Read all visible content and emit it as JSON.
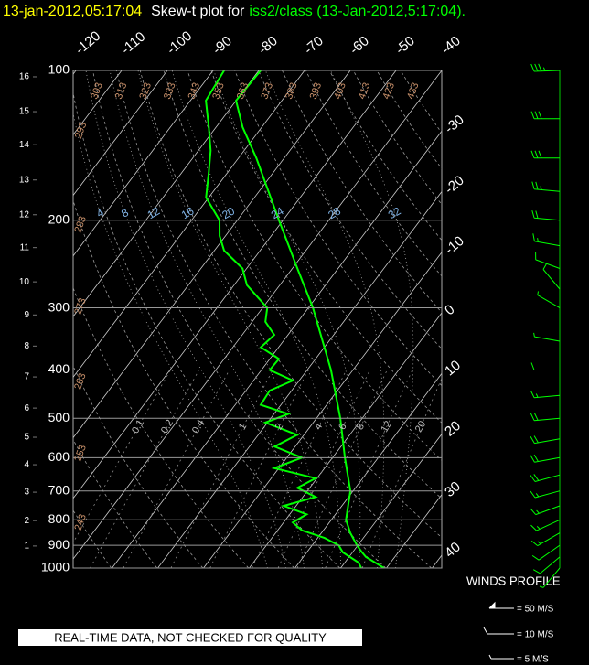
{
  "title": {
    "date": "13-jan-2012,05:17:04",
    "text": "Skew-t plot for",
    "source": "iss2/class (13-Jan-2012,5:17:04)."
  },
  "chart_data": {
    "type": "skewt",
    "log_y": true,
    "ylim": [
      1000,
      100
    ],
    "yticks": [
      100,
      200,
      300,
      400,
      500,
      600,
      700,
      800,
      900,
      1000
    ],
    "xlim": [
      -38.5,
      42.1
    ],
    "xticks": [
      -120,
      -110,
      -100,
      -90,
      -80,
      -70,
      -60,
      -50,
      -40,
      -30,
      -20,
      -10,
      0,
      10,
      20,
      30,
      40
    ],
    "height_km_ticks": [
      {
        "km": 1,
        "pressure": 903
      },
      {
        "km": 2,
        "pressure": 803
      },
      {
        "km": 3,
        "pressure": 704
      },
      {
        "km": 4,
        "pressure": 620
      },
      {
        "km": 5,
        "pressure": 546
      },
      {
        "km": 6,
        "pressure": 477
      },
      {
        "km": 7,
        "pressure": 413
      },
      {
        "km": 8,
        "pressure": 358
      },
      {
        "km": 9,
        "pressure": 310
      },
      {
        "km": 10,
        "pressure": 266
      },
      {
        "km": 11,
        "pressure": 227
      },
      {
        "km": 12,
        "pressure": 195
      },
      {
        "km": 13,
        "pressure": 166
      },
      {
        "km": 14,
        "pressure": 141
      },
      {
        "km": 15,
        "pressure": 121
      },
      {
        "km": 16,
        "pressure": 103
      }
    ],
    "dry_adiabats": [
      243,
      253,
      263,
      273,
      283,
      293,
      303,
      313,
      323,
      333,
      343,
      353,
      363,
      373,
      383,
      393,
      403,
      413,
      423,
      433
    ],
    "mixing_ratios": [
      0.1,
      0.2,
      0.4,
      1,
      2,
      4,
      6,
      8,
      12,
      20
    ],
    "moist_adiabats": [
      4,
      8,
      12,
      16,
      20,
      24,
      28,
      32
    ],
    "series": [
      {
        "color": "#00ff00",
        "pressure": [
          1000,
          950,
          925,
          900,
          850,
          800,
          700,
          600,
          500,
          400,
          300,
          250,
          200,
          150,
          130,
          115,
          100
        ],
        "values": [
          29.5,
          23.7,
          21.7,
          19.8,
          16.3,
          13.2,
          9.4,
          2.7,
          -4.8,
          -14.8,
          -29,
          -38.9,
          -50.9,
          -66.1,
          -74.2,
          -80,
          -79.6
        ]
      },
      {
        "color": "#00ff00",
        "pressure": [
          1000,
          975,
          930,
          900,
          870,
          840,
          810,
          780,
          750,
          720,
          690,
          660,
          630,
          600,
          570,
          540,
          510,
          490,
          470,
          440,
          420,
          400,
          380,
          360,
          340,
          320,
          300,
          270,
          250,
          230,
          215,
          200,
          180,
          160,
          145,
          130,
          115,
          100
        ],
        "values": [
          24.5,
          23,
          17.9,
          15.8,
          11.5,
          5.3,
          2,
          3.7,
          -2.7,
          2.8,
          -2.7,
          -0.3,
          -11,
          -6.7,
          -14.5,
          -11.5,
          -20.5,
          -16.9,
          -24.4,
          -24.8,
          -21.4,
          -28.2,
          -28,
          -33.9,
          -33,
          -37.1,
          -39,
          -47.2,
          -50.9,
          -57.9,
          -61.3,
          -63.9,
          -70.6,
          -74.2,
          -77.3,
          -81.6,
          -86.6,
          -87.6
        ]
      }
    ],
    "winds": {
      "pressure": [
        1000,
        950,
        900,
        850,
        800,
        750,
        700,
        650,
        600,
        550,
        500,
        450,
        400,
        350,
        300,
        275,
        250,
        225,
        200,
        175,
        150,
        125,
        100
      ],
      "speed": [
        8,
        12,
        14,
        15,
        16,
        17,
        18,
        20,
        22,
        22,
        20,
        16,
        12,
        8,
        6,
        10,
        14,
        18,
        22,
        26,
        30,
        32,
        35
      ],
      "direction": [
        220,
        230,
        235,
        240,
        245,
        250,
        255,
        255,
        260,
        260,
        265,
        265,
        270,
        280,
        300,
        320,
        290,
        280,
        275,
        275,
        270,
        270,
        268
      ]
    },
    "legend": {
      "title": "WINDS PROFILE",
      "items": [
        "= 50 M/S",
        "= 10 M/S",
        "= 5 M/S"
      ]
    }
  },
  "footer": "REAL-TIME DATA, NOT CHECKED FOR QUALITY"
}
